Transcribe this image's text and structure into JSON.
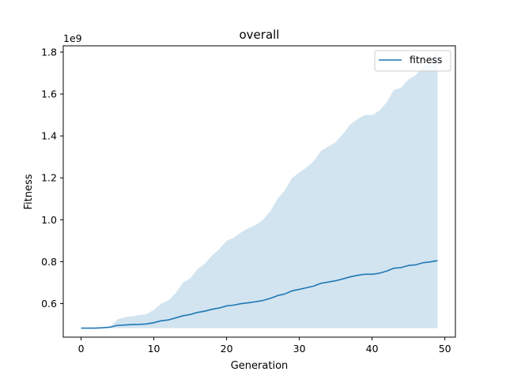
{
  "chart_data": {
    "type": "line",
    "title": "overall",
    "xlabel": "Generation",
    "ylabel": "Fitness",
    "y_offset_label": "1e9",
    "xlim": [
      -2.45,
      51.45
    ],
    "ylim": [
      0.44,
      1.83
    ],
    "x_ticks": [
      0,
      10,
      20,
      30,
      40,
      50
    ],
    "x_tick_labels": [
      "0",
      "10",
      "20",
      "30",
      "40",
      "50"
    ],
    "y_ticks": [
      0.6,
      0.8,
      1.0,
      1.2,
      1.4,
      1.6,
      1.8
    ],
    "y_tick_labels": [
      "0.6",
      "0.8",
      "1.0",
      "1.2",
      "1.4",
      "1.6",
      "1.8"
    ],
    "grid": false,
    "legend_position": "top-right",
    "colors": {
      "line": "#1f77b4",
      "band": "#1f77b4"
    },
    "x": [
      0,
      1,
      2,
      3,
      4,
      5,
      6,
      7,
      8,
      9,
      10,
      11,
      12,
      13,
      14,
      15,
      16,
      17,
      18,
      19,
      20,
      21,
      22,
      23,
      24,
      25,
      26,
      27,
      28,
      29,
      30,
      31,
      32,
      33,
      34,
      35,
      36,
      37,
      38,
      39,
      40,
      41,
      42,
      43,
      44,
      45,
      46,
      47,
      48,
      49
    ],
    "series": [
      {
        "name": "fitness",
        "values": [
          0.483,
          0.483,
          0.483,
          0.485,
          0.488,
          0.496,
          0.498,
          0.5,
          0.501,
          0.503,
          0.509,
          0.518,
          0.522,
          0.532,
          0.542,
          0.548,
          0.558,
          0.564,
          0.573,
          0.579,
          0.589,
          0.593,
          0.6,
          0.604,
          0.609,
          0.615,
          0.625,
          0.638,
          0.646,
          0.661,
          0.668,
          0.676,
          0.684,
          0.697,
          0.703,
          0.709,
          0.718,
          0.728,
          0.735,
          0.74,
          0.74,
          0.745,
          0.755,
          0.769,
          0.772,
          0.782,
          0.785,
          0.795,
          0.799,
          0.805
        ],
        "band_lower": [
          0.483,
          0.483,
          0.483,
          0.483,
          0.483,
          0.483,
          0.483,
          0.483,
          0.483,
          0.483,
          0.483,
          0.483,
          0.483,
          0.483,
          0.483,
          0.483,
          0.483,
          0.483,
          0.483,
          0.483,
          0.483,
          0.483,
          0.483,
          0.483,
          0.483,
          0.483,
          0.483,
          0.483,
          0.483,
          0.483,
          0.483,
          0.483,
          0.483,
          0.483,
          0.483,
          0.483,
          0.483,
          0.483,
          0.483,
          0.483,
          0.483,
          0.483,
          0.483,
          0.483,
          0.483,
          0.483,
          0.483,
          0.483,
          0.483,
          0.483
        ],
        "band_upper": [
          0.483,
          0.483,
          0.483,
          0.485,
          0.488,
          0.525,
          0.535,
          0.54,
          0.545,
          0.55,
          0.57,
          0.6,
          0.615,
          0.65,
          0.7,
          0.72,
          0.765,
          0.79,
          0.83,
          0.86,
          0.9,
          0.915,
          0.94,
          0.96,
          0.975,
          1.0,
          1.04,
          1.1,
          1.14,
          1.2,
          1.225,
          1.25,
          1.28,
          1.33,
          1.35,
          1.37,
          1.41,
          1.455,
          1.48,
          1.5,
          1.5,
          1.52,
          1.56,
          1.62,
          1.63,
          1.67,
          1.69,
          1.73,
          1.76,
          1.8
        ]
      }
    ]
  }
}
